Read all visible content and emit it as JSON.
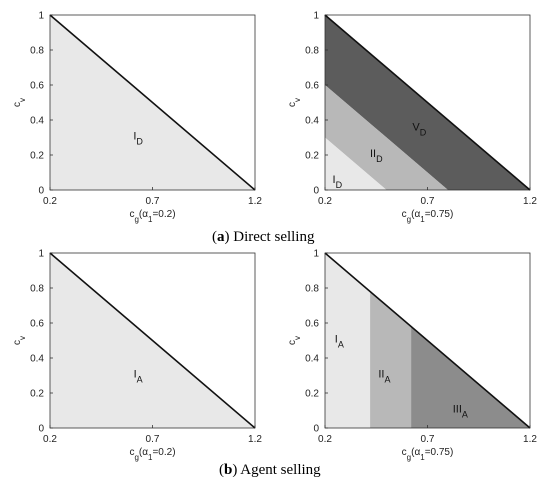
{
  "captions": {
    "a_letter": "a",
    "a_text": "Direct selling",
    "b_letter": "b",
    "b_text": "Agent selling"
  },
  "chart_data": [
    {
      "type": "area",
      "id": "a-left",
      "xlabel": "c_g(α_1=0.2)",
      "ylabel": "c_v",
      "xlim": [
        0.2,
        1.2
      ],
      "ylim": [
        0,
        1
      ],
      "xticks": [
        "0.2",
        "0.7",
        "1.2"
      ],
      "yticks": [
        "0",
        "0.2",
        "0.4",
        "0.6",
        "0.8",
        "1"
      ],
      "boundary": {
        "x": [
          0.2,
          1.2
        ],
        "y": [
          1,
          0
        ]
      },
      "regions": [
        {
          "label": "I",
          "sub": "D",
          "color": "#e8e8e8",
          "polygon": [
            [
              0.2,
              0
            ],
            [
              0.2,
              1
            ],
            [
              1.2,
              0
            ]
          ],
          "label_at": [
            0.63,
            0.29
          ]
        }
      ]
    },
    {
      "type": "area",
      "id": "a-right",
      "xlabel": "c_g(α_1=0.75)",
      "ylabel": "c_v",
      "xlim": [
        0.2,
        1.2
      ],
      "ylim": [
        0,
        1
      ],
      "xticks": [
        "0.2",
        "0.7",
        "1.2"
      ],
      "yticks": [
        "0",
        "0.2",
        "0.4",
        "0.6",
        "0.8",
        "1"
      ],
      "boundary": {
        "x": [
          0.2,
          1.2
        ],
        "y": [
          1,
          0
        ]
      },
      "regions": [
        {
          "label": "V",
          "sub": "D",
          "color": "#5c5c5c",
          "polygon": [
            [
              0.8,
              0
            ],
            [
              1.2,
              0
            ],
            [
              0.2,
              1
            ],
            [
              0.2,
              0.6
            ]
          ],
          "label_at": [
            0.66,
            0.34
          ]
        },
        {
          "label": "II",
          "sub": "D",
          "color": "#b8b8b8",
          "polygon": [
            [
              0.5,
              0
            ],
            [
              0.8,
              0
            ],
            [
              0.2,
              0.6
            ],
            [
              0.2,
              0.3
            ]
          ],
          "label_at": [
            0.45,
            0.19
          ]
        },
        {
          "label": "I",
          "sub": "D",
          "color": "#e8e8e8",
          "polygon": [
            [
              0.2,
              0
            ],
            [
              0.5,
              0
            ],
            [
              0.2,
              0.3
            ]
          ],
          "label_at": [
            0.26,
            0.04
          ]
        }
      ]
    },
    {
      "type": "area",
      "id": "b-left",
      "xlabel": "c_g(α_1=0.2)",
      "ylabel": "c_v",
      "xlim": [
        0.2,
        1.2
      ],
      "ylim": [
        0,
        1
      ],
      "xticks": [
        "0.2",
        "0.7",
        "1.2"
      ],
      "yticks": [
        "0",
        "0.2",
        "0.4",
        "0.6",
        "0.8",
        "1"
      ],
      "boundary": {
        "x": [
          0.2,
          1.2
        ],
        "y": [
          1,
          0
        ]
      },
      "regions": [
        {
          "label": "I",
          "sub": "A",
          "color": "#e8e8e8",
          "polygon": [
            [
              0.2,
              0
            ],
            [
              0.2,
              1
            ],
            [
              1.2,
              0
            ]
          ],
          "label_at": [
            0.63,
            0.29
          ]
        }
      ]
    },
    {
      "type": "area",
      "id": "b-right",
      "xlabel": "c_g(α_1=0.75)",
      "ylabel": "c_v",
      "xlim": [
        0.2,
        1.2
      ],
      "ylim": [
        0,
        1
      ],
      "xticks": [
        "0.2",
        "0.7",
        "1.2"
      ],
      "yticks": [
        "0",
        "0.2",
        "0.4",
        "0.6",
        "0.8",
        "1"
      ],
      "boundary": {
        "x": [
          0.2,
          1.2
        ],
        "y": [
          1,
          0
        ]
      },
      "regions": [
        {
          "label": "I",
          "sub": "A",
          "color": "#e8e8e8",
          "polygon": [
            [
              0.2,
              0
            ],
            [
              0.2,
              1
            ],
            [
              0.42,
              0.78
            ],
            [
              0.42,
              0
            ]
          ],
          "label_at": [
            0.27,
            0.49
          ]
        },
        {
          "label": "II",
          "sub": "A",
          "color": "#b8b8b8",
          "polygon": [
            [
              0.42,
              0
            ],
            [
              0.42,
              0.78
            ],
            [
              0.62,
              0.58
            ],
            [
              0.62,
              0
            ]
          ],
          "label_at": [
            0.49,
            0.29
          ]
        },
        {
          "label": "III",
          "sub": "A",
          "color": "#8c8c8c",
          "polygon": [
            [
              0.62,
              0
            ],
            [
              0.62,
              0.58
            ],
            [
              1.2,
              0
            ]
          ],
          "label_at": [
            0.86,
            0.09
          ]
        }
      ]
    }
  ]
}
